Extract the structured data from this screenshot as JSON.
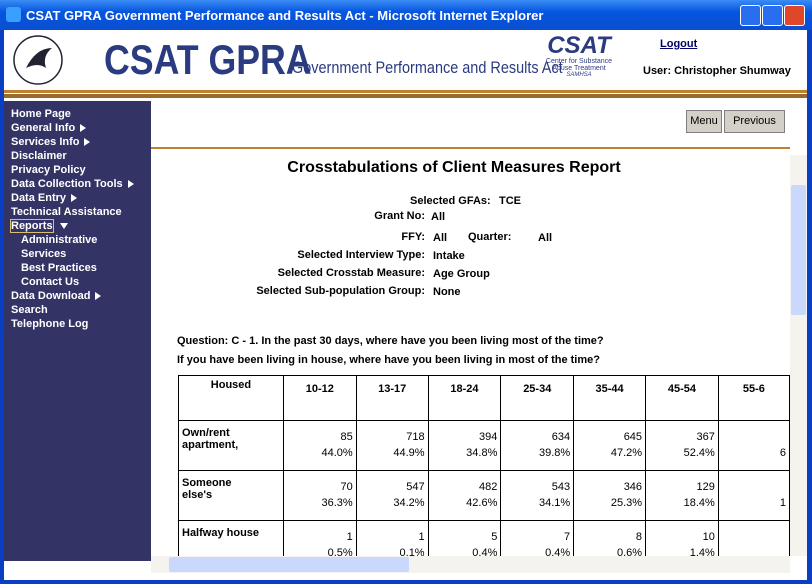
{
  "window": {
    "title": "CSAT GPRA Government Performance and Results Act - Microsoft Internet Explorer"
  },
  "header": {
    "brand": "CSAT GPRA",
    "tagline": "Government Performance and Results Act",
    "logo": {
      "name": "CSAT",
      "lines": [
        "Center for Substance",
        "Abuse Treatment",
        "SAMHSA"
      ]
    },
    "logout": "Logout",
    "user": "User: Christopher Shumway"
  },
  "nav": {
    "items": [
      {
        "label": "Home Page"
      },
      {
        "label": "General Info",
        "arrow": "right"
      },
      {
        "label": "Services Info",
        "arrow": "right"
      },
      {
        "label": "Disclaimer"
      },
      {
        "label": "Privacy Policy"
      },
      {
        "label": "Data Collection Tools",
        "arrow": "right"
      },
      {
        "label": "Data Entry",
        "arrow": "right"
      },
      {
        "label": "Technical Assistance"
      },
      {
        "label": "Reports",
        "arrow": "down",
        "sub": [
          "Administrative",
          "Services",
          "Best Practices",
          "Contact Us"
        ]
      },
      {
        "label": "Data Download",
        "arrow": "right"
      },
      {
        "label": "Search"
      },
      {
        "label": "Telephone Log"
      }
    ]
  },
  "buttons": [
    "Menu",
    "Previous"
  ],
  "report": {
    "title": "Crosstabulations of Client Measures Report",
    "gfa": {
      "label": "Selected GFAs:",
      "value": "TCE"
    },
    "grant": {
      "label": "Grant No:",
      "value": "All"
    },
    "ffy": {
      "label": "FFY:",
      "value": "All",
      "quarter_label": "Quarter:",
      "quarter_value": "All"
    },
    "fields": [
      {
        "label": "Selected Interview Type:",
        "value": "Intake"
      },
      {
        "label": "Selected Crosstab Measure:",
        "value": "Age Group"
      },
      {
        "label": "Selected Sub-population Group:",
        "value": "None"
      }
    ],
    "question": [
      "Question: C - 1. In the past 30 days, where have you been living most of the time?",
      "If you have been living in house, where have you been living in most of the time?"
    ]
  },
  "table": {
    "header": [
      "Housed",
      "10-12",
      "13-17",
      "18-24",
      "25-34",
      "35-44",
      "45-54",
      "55-6"
    ],
    "rows": [
      {
        "label": [
          "Own/rent",
          "apartment,"
        ],
        "cells": [
          [
            "85",
            "44.0%"
          ],
          [
            "718",
            "44.9%"
          ],
          [
            "394",
            "34.8%"
          ],
          [
            "634",
            "39.8%"
          ],
          [
            "645",
            "47.2%"
          ],
          [
            "367",
            "52.4%"
          ],
          [
            "",
            "6"
          ]
        ]
      },
      {
        "label": [
          "Someone",
          "else's"
        ],
        "cells": [
          [
            "70",
            "36.3%"
          ],
          [
            "547",
            "34.2%"
          ],
          [
            "482",
            "42.6%"
          ],
          [
            "543",
            "34.1%"
          ],
          [
            "346",
            "25.3%"
          ],
          [
            "129",
            "18.4%"
          ],
          [
            "",
            "1"
          ]
        ]
      },
      {
        "label": [
          "Halfway house"
        ],
        "cells": [
          [
            "1",
            "0.5%"
          ],
          [
            "1",
            "0.1%"
          ],
          [
            "5",
            "0.4%"
          ],
          [
            "7",
            "0.4%"
          ],
          [
            "8",
            "0.6%"
          ],
          [
            "10",
            "1.4%"
          ],
          [
            "",
            ""
          ]
        ]
      }
    ]
  }
}
